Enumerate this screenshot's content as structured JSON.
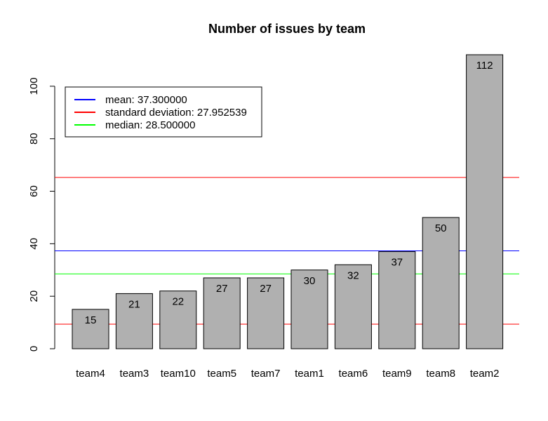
{
  "chart_data": {
    "type": "bar",
    "title": "Number of issues by team",
    "xlabel": "",
    "ylabel": "",
    "categories": [
      "team4",
      "team3",
      "team10",
      "team5",
      "team7",
      "team1",
      "team6",
      "team9",
      "team8",
      "team2"
    ],
    "values": [
      15,
      21,
      22,
      27,
      27,
      30,
      32,
      37,
      50,
      112
    ],
    "ylim": [
      0,
      112
    ],
    "yticks": [
      0,
      20,
      40,
      60,
      80,
      100
    ],
    "bar_color": "#b0b0b0",
    "grid": false,
    "legend_position": "top-left",
    "reference_lines": [
      {
        "name": "mean: 37.300000",
        "value": 37.3,
        "color": "#0000ff"
      },
      {
        "name": "standard deviation: 27.952539",
        "values": [
          9.347461,
          65.252539
        ],
        "color": "#ff0000"
      },
      {
        "name": "median: 28.500000",
        "value": 28.5,
        "color": "#00ff00"
      }
    ]
  }
}
